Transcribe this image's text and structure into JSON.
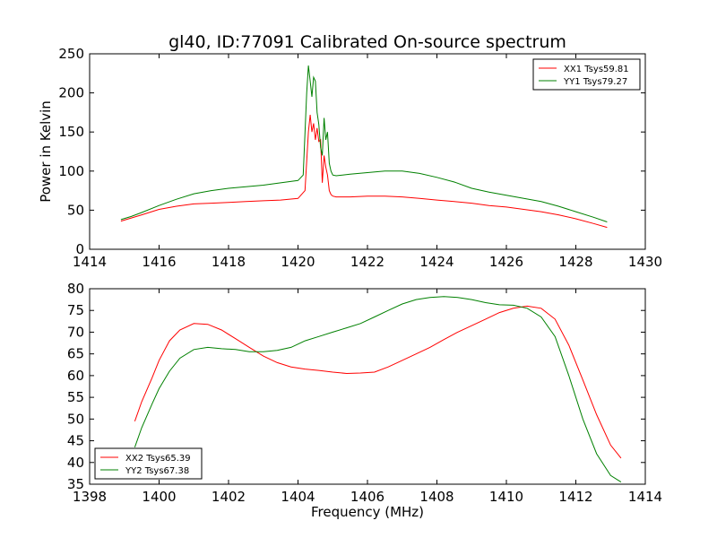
{
  "figure": {
    "title": "gl40, ID:77091 Calibrated On-source spectrum"
  },
  "chart_data": [
    {
      "type": "line",
      "title": "gl40, ID:77091 Calibrated On-source spectrum",
      "xlabel": "",
      "ylabel": "Power in Kelvin",
      "xlim": [
        1414,
        1430
      ],
      "ylim": [
        0,
        250
      ],
      "xticks": [
        1414,
        1416,
        1418,
        1420,
        1422,
        1424,
        1426,
        1428,
        1430
      ],
      "yticks": [
        0,
        50,
        100,
        150,
        200,
        250
      ],
      "grid": false,
      "legend_position": "top-right",
      "series": [
        {
          "name": "XX1 Tsys59.81",
          "color": "#ff0000",
          "x": [
            1414.9,
            1415.2,
            1415.5,
            1416.0,
            1416.5,
            1417.0,
            1417.5,
            1418.0,
            1418.5,
            1419.0,
            1419.5,
            1420.0,
            1420.2,
            1420.3,
            1420.35,
            1420.4,
            1420.45,
            1420.5,
            1420.55,
            1420.6,
            1420.65,
            1420.7,
            1420.75,
            1420.8,
            1420.85,
            1420.9,
            1420.95,
            1421.0,
            1421.1,
            1421.5,
            1422.0,
            1422.5,
            1423.0,
            1423.5,
            1424.0,
            1424.5,
            1425.0,
            1425.5,
            1426.0,
            1426.5,
            1427.0,
            1427.5,
            1428.0,
            1428.5,
            1428.9
          ],
          "y": [
            36,
            40,
            44,
            51,
            55,
            58,
            59,
            60,
            61,
            62,
            63,
            65,
            75,
            150,
            172,
            150,
            161,
            140,
            155,
            138,
            140,
            85,
            120,
            105,
            95,
            75,
            70,
            68,
            67,
            67,
            68,
            68,
            67,
            65,
            63,
            61,
            59,
            56,
            54,
            51,
            48,
            44,
            39,
            33,
            28
          ]
        },
        {
          "name": "YY1 Tsys79.27",
          "color": "#008000",
          "x": [
            1414.9,
            1415.2,
            1415.5,
            1416.0,
            1416.5,
            1417.0,
            1417.5,
            1418.0,
            1418.5,
            1419.0,
            1419.5,
            1420.0,
            1420.15,
            1420.25,
            1420.3,
            1420.35,
            1420.4,
            1420.45,
            1420.5,
            1420.55,
            1420.6,
            1420.65,
            1420.7,
            1420.75,
            1420.8,
            1420.85,
            1420.9,
            1420.95,
            1421.0,
            1421.1,
            1421.5,
            1422.0,
            1422.5,
            1423.0,
            1423.5,
            1424.0,
            1424.5,
            1425.0,
            1425.5,
            1426.0,
            1426.5,
            1427.0,
            1427.5,
            1428.0,
            1428.5,
            1428.9
          ],
          "y": [
            38,
            42,
            47,
            56,
            64,
            71,
            75,
            78,
            80,
            82,
            85,
            88,
            95,
            200,
            235,
            215,
            195,
            220,
            215,
            175,
            160,
            130,
            120,
            168,
            140,
            150,
            110,
            100,
            95,
            94,
            96,
            98,
            100,
            100,
            97,
            92,
            86,
            78,
            73,
            69,
            65,
            61,
            55,
            48,
            41,
            35
          ]
        }
      ]
    },
    {
      "type": "line",
      "title": "",
      "xlabel": "Frequency (MHz)",
      "ylabel": "",
      "xlim": [
        1398,
        1414
      ],
      "ylim": [
        35,
        80
      ],
      "xticks": [
        1398,
        1400,
        1402,
        1404,
        1406,
        1408,
        1410,
        1412,
        1414
      ],
      "yticks": [
        35,
        40,
        45,
        50,
        55,
        60,
        65,
        70,
        75,
        80
      ],
      "grid": false,
      "legend_position": "bottom-left",
      "series": [
        {
          "name": "XX2 Tsys65.39",
          "color": "#ff0000",
          "x": [
            1399.3,
            1399.5,
            1399.8,
            1400.0,
            1400.3,
            1400.6,
            1401.0,
            1401.4,
            1401.8,
            1402.2,
            1402.6,
            1403.0,
            1403.4,
            1403.8,
            1404.2,
            1404.6,
            1405.0,
            1405.4,
            1405.8,
            1406.2,
            1406.6,
            1407.0,
            1407.4,
            1407.8,
            1408.2,
            1408.6,
            1409.0,
            1409.4,
            1409.8,
            1410.2,
            1410.6,
            1411.0,
            1411.4,
            1411.8,
            1412.2,
            1412.6,
            1413.0,
            1413.3
          ],
          "y": [
            49.5,
            54,
            59.5,
            63.5,
            68,
            70.5,
            72,
            71.8,
            70.5,
            68.5,
            66.5,
            64.5,
            63,
            62,
            61.5,
            61.2,
            60.8,
            60.5,
            60.6,
            60.8,
            62,
            63.5,
            65,
            66.5,
            68.3,
            70,
            71.5,
            73,
            74.5,
            75.5,
            76,
            75.5,
            73,
            67,
            59,
            51,
            44,
            41
          ]
        },
        {
          "name": "YY2 Tsys67.38",
          "color": "#008000",
          "x": [
            1399.3,
            1399.5,
            1399.8,
            1400.0,
            1400.3,
            1400.6,
            1401.0,
            1401.4,
            1401.8,
            1402.2,
            1402.6,
            1403.0,
            1403.4,
            1403.8,
            1404.2,
            1404.6,
            1405.0,
            1405.4,
            1405.8,
            1406.2,
            1406.6,
            1407.0,
            1407.4,
            1407.8,
            1408.2,
            1408.6,
            1409.0,
            1409.4,
            1409.8,
            1410.2,
            1410.6,
            1411.0,
            1411.4,
            1411.8,
            1412.2,
            1412.6,
            1413.0,
            1413.3
          ],
          "y": [
            43.5,
            48,
            53.5,
            57,
            61,
            64,
            66,
            66.5,
            66.2,
            66,
            65.5,
            65.5,
            65.8,
            66.5,
            68,
            69,
            70,
            71,
            72,
            73.5,
            75,
            76.5,
            77.5,
            78,
            78.2,
            78,
            77.5,
            76.8,
            76.3,
            76.2,
            75.5,
            73.5,
            69,
            60,
            50,
            42,
            37,
            35.5
          ]
        }
      ]
    }
  ]
}
